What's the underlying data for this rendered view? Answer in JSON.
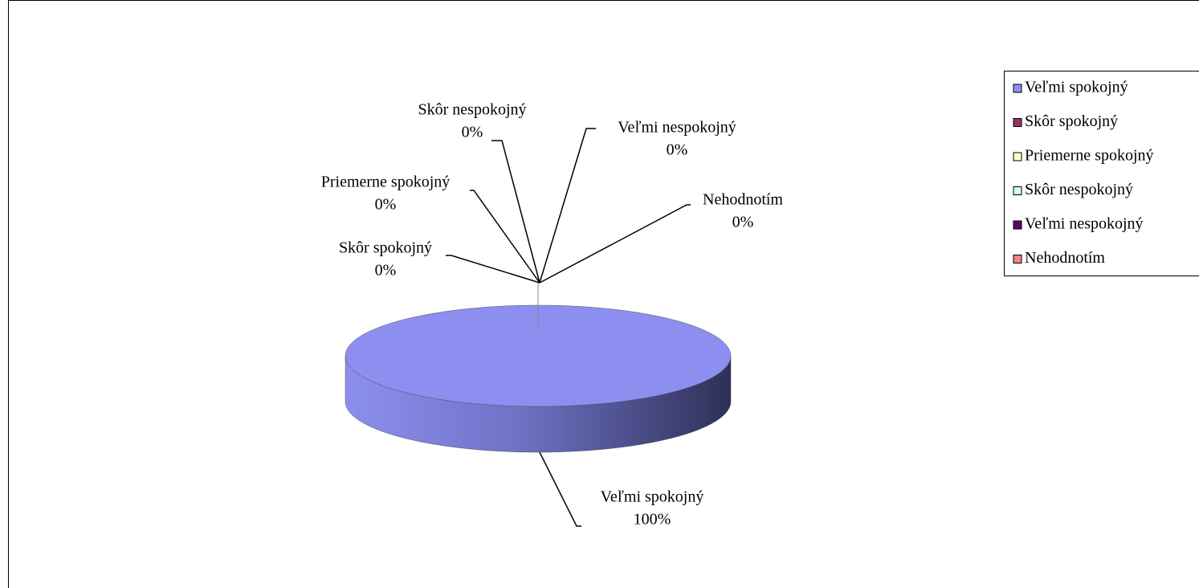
{
  "chart_data": {
    "type": "pie3d",
    "categories": [
      "Veľmi spokojný",
      "Skôr spokojný",
      "Priemerne spokojný",
      "Skôr nespokojný",
      "Veľmi nespokojný",
      "Nehodnotím"
    ],
    "values": [
      100,
      0,
      0,
      0,
      0,
      0
    ],
    "value_labels": [
      "100%",
      "0%",
      "0%",
      "0%",
      "0%",
      "0%"
    ],
    "colors": [
      "#8c8ff0",
      "#993366",
      "#ffffcc",
      "#ccffff",
      "#660066",
      "#ff8080"
    ],
    "legend": "right"
  }
}
